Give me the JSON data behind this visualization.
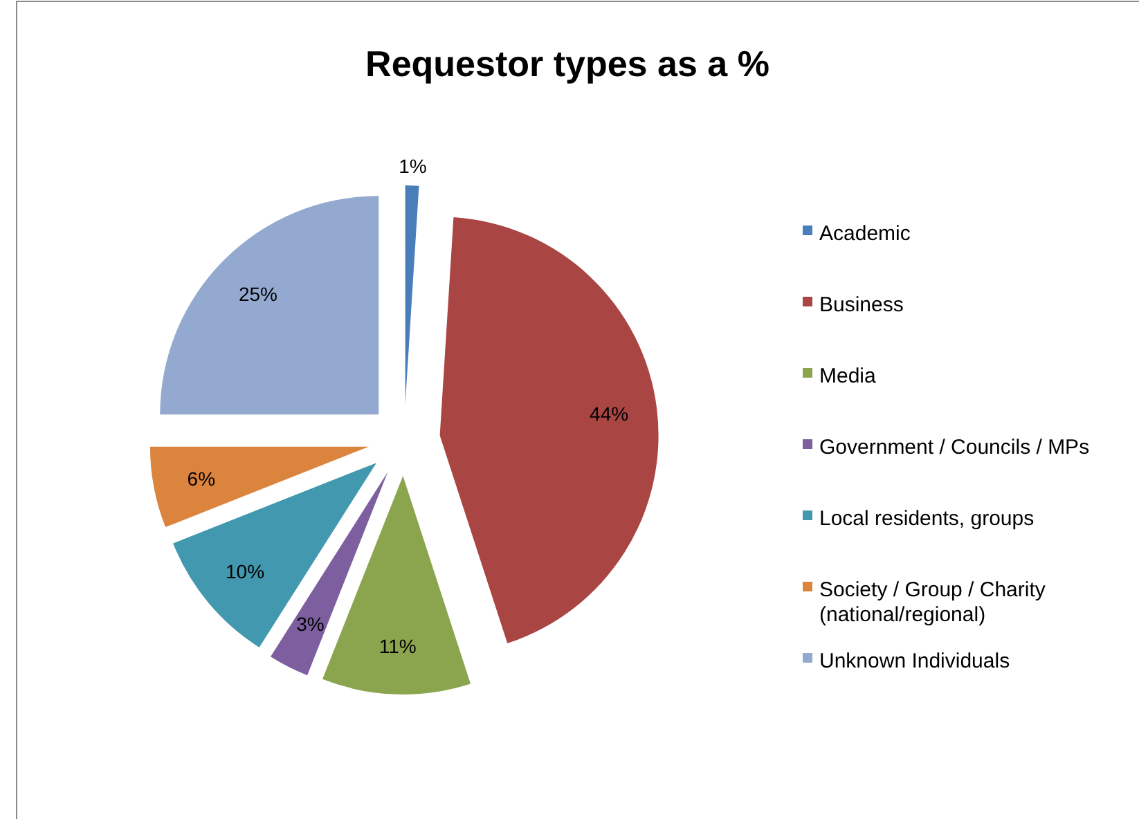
{
  "chart_data": {
    "type": "pie",
    "title": "Requestor types as a %",
    "categories": [
      "Academic",
      "Business",
      "Media",
      "Government / Councils / MPs",
      "Local residents, groups",
      "Society / Group / Charity (national/regional)",
      "Unknown Individuals"
    ],
    "values": [
      1,
      44,
      11,
      3,
      10,
      6,
      25
    ],
    "colors": [
      "#4a7ebb",
      "#a94643",
      "#8ba54f",
      "#7d5fa0",
      "#4198af",
      "#db843d",
      "#93a9cf"
    ],
    "value_labels": [
      "1%",
      "44%",
      "11%",
      "3%",
      "10%",
      "6%",
      "25%"
    ],
    "legend": "right"
  }
}
